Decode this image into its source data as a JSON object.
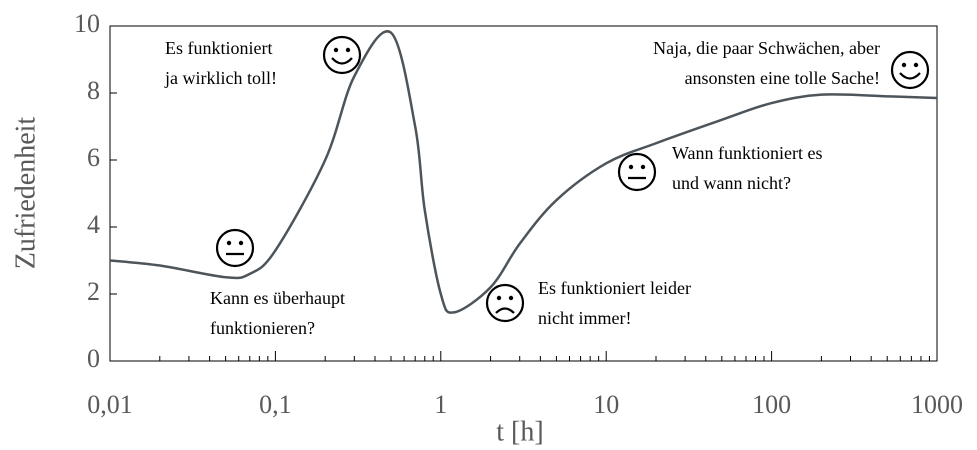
{
  "chart_data": {
    "type": "line",
    "xlabel": "t [h]",
    "ylabel": "Zufriedenheit",
    "x": [
      0.01,
      0.02,
      0.05,
      0.07,
      0.1,
      0.2,
      0.3,
      0.5,
      0.7,
      0.8,
      1,
      1.2,
      2,
      3,
      5,
      10,
      20,
      50,
      100,
      200,
      500,
      1000
    ],
    "series": [
      {
        "name": "Zufriedenheit",
        "color": "#4d555b",
        "values": [
          3.0,
          2.85,
          2.5,
          2.6,
          3.3,
          6.0,
          8.5,
          9.8,
          7.0,
          4.5,
          2.0,
          1.45,
          2.2,
          3.5,
          4.8,
          5.9,
          6.5,
          7.2,
          7.7,
          7.95,
          7.9,
          7.85
        ]
      }
    ],
    "xscale": "log",
    "xlim": [
      0.01,
      1000
    ],
    "xticks": [
      {
        "value": 0.01,
        "label": "0,01"
      },
      {
        "value": 0.1,
        "label": "0,1"
      },
      1,
      10,
      100,
      1000
    ],
    "x_minor_ticks": [
      0.02,
      0.03,
      0.04,
      0.05,
      0.06,
      0.07,
      0.08,
      0.09,
      0.2,
      0.3,
      0.4,
      0.5,
      0.6,
      0.7,
      0.8,
      0.9,
      2,
      3,
      4,
      5,
      6,
      7,
      8,
      9,
      20,
      30,
      40,
      50,
      60,
      70,
      80,
      90,
      200,
      300,
      400,
      500,
      600,
      700,
      800,
      900
    ],
    "ylim": [
      0,
      10
    ],
    "yticks": [
      0,
      2,
      4,
      6,
      8,
      10
    ],
    "annotations": [
      {
        "lines": [
          "Es funktioniert",
          "ja wirklich toll!"
        ]
      },
      {
        "lines": [
          "Naja, die paar Schwächen, aber",
          "ansonsten eine tolle Sache!"
        ]
      },
      {
        "lines": [
          "Kann es überhaupt",
          "funktionieren?"
        ]
      },
      {
        "lines": [
          "Es funktioniert leider",
          "nicht immer!"
        ]
      },
      {
        "lines": [
          "Wann funktioniert es",
          "und wann nicht?"
        ]
      }
    ]
  }
}
